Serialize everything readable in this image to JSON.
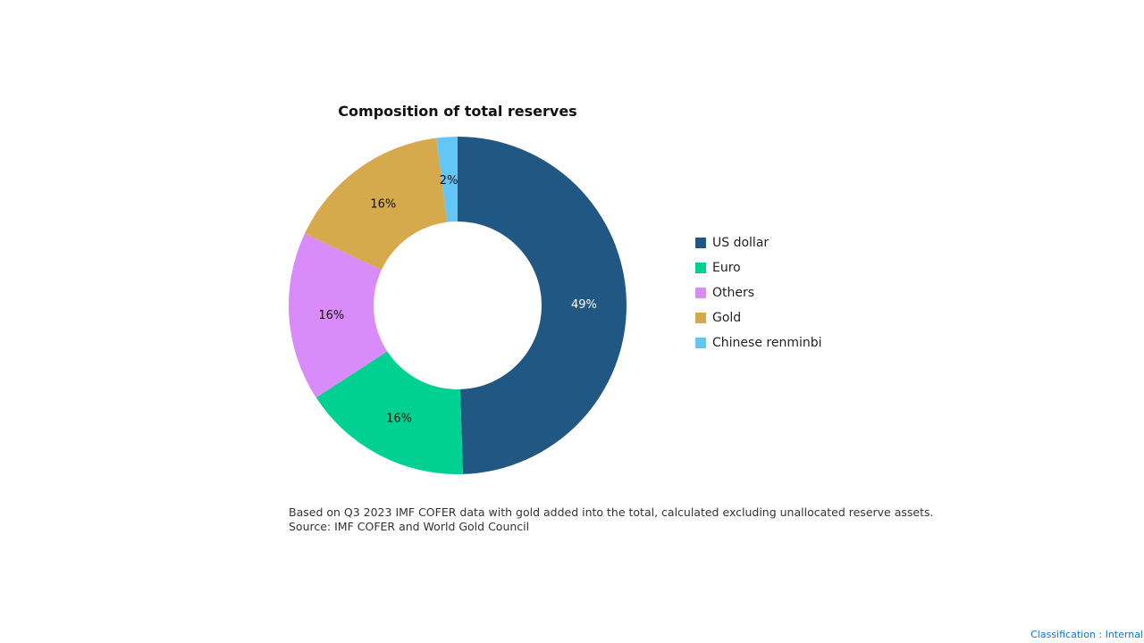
{
  "chart_data": {
    "type": "pie",
    "variant": "donut",
    "title": "Composition of total reserves",
    "categories": [
      "US dollar",
      "Euro",
      "Others",
      "Gold",
      "Chinese renminbi"
    ],
    "values": [
      49,
      16,
      16,
      16,
      2
    ],
    "precise_values_estimate": [
      49.5,
      16.3,
      16.2,
      16.0,
      2.0
    ],
    "labels": [
      "49%",
      "16%",
      "16%",
      "16%",
      "2%"
    ],
    "colors": [
      "#215783",
      "#00d193",
      "#d98bf9",
      "#d5a94c",
      "#64c6f7"
    ],
    "label_colors": [
      "#ffffff",
      "#111111",
      "#111111",
      "#111111",
      "#111111"
    ],
    "start_angle": "12 o'clock",
    "direction": "clockwise",
    "legend_position": "right",
    "xlabel": "",
    "ylabel": ""
  },
  "chart": {
    "title": "Composition of total reserves"
  },
  "legend": {
    "items": [
      {
        "label": "US dollar",
        "color": "#215783"
      },
      {
        "label": "Euro",
        "color": "#00d193"
      },
      {
        "label": "Others",
        "color": "#d98bf9"
      },
      {
        "label": "Gold",
        "color": "#d5a94c"
      },
      {
        "label": "Chinese renminbi",
        "color": "#64c6f7"
      }
    ]
  },
  "footnote": {
    "line1": "Based on Q3 2023 IMF COFER data with gold added into the total, calculated excluding unallocated reserve assets.",
    "line2": "Source: IMF COFER and World Gold Council"
  },
  "classification": "Classification : Internal"
}
